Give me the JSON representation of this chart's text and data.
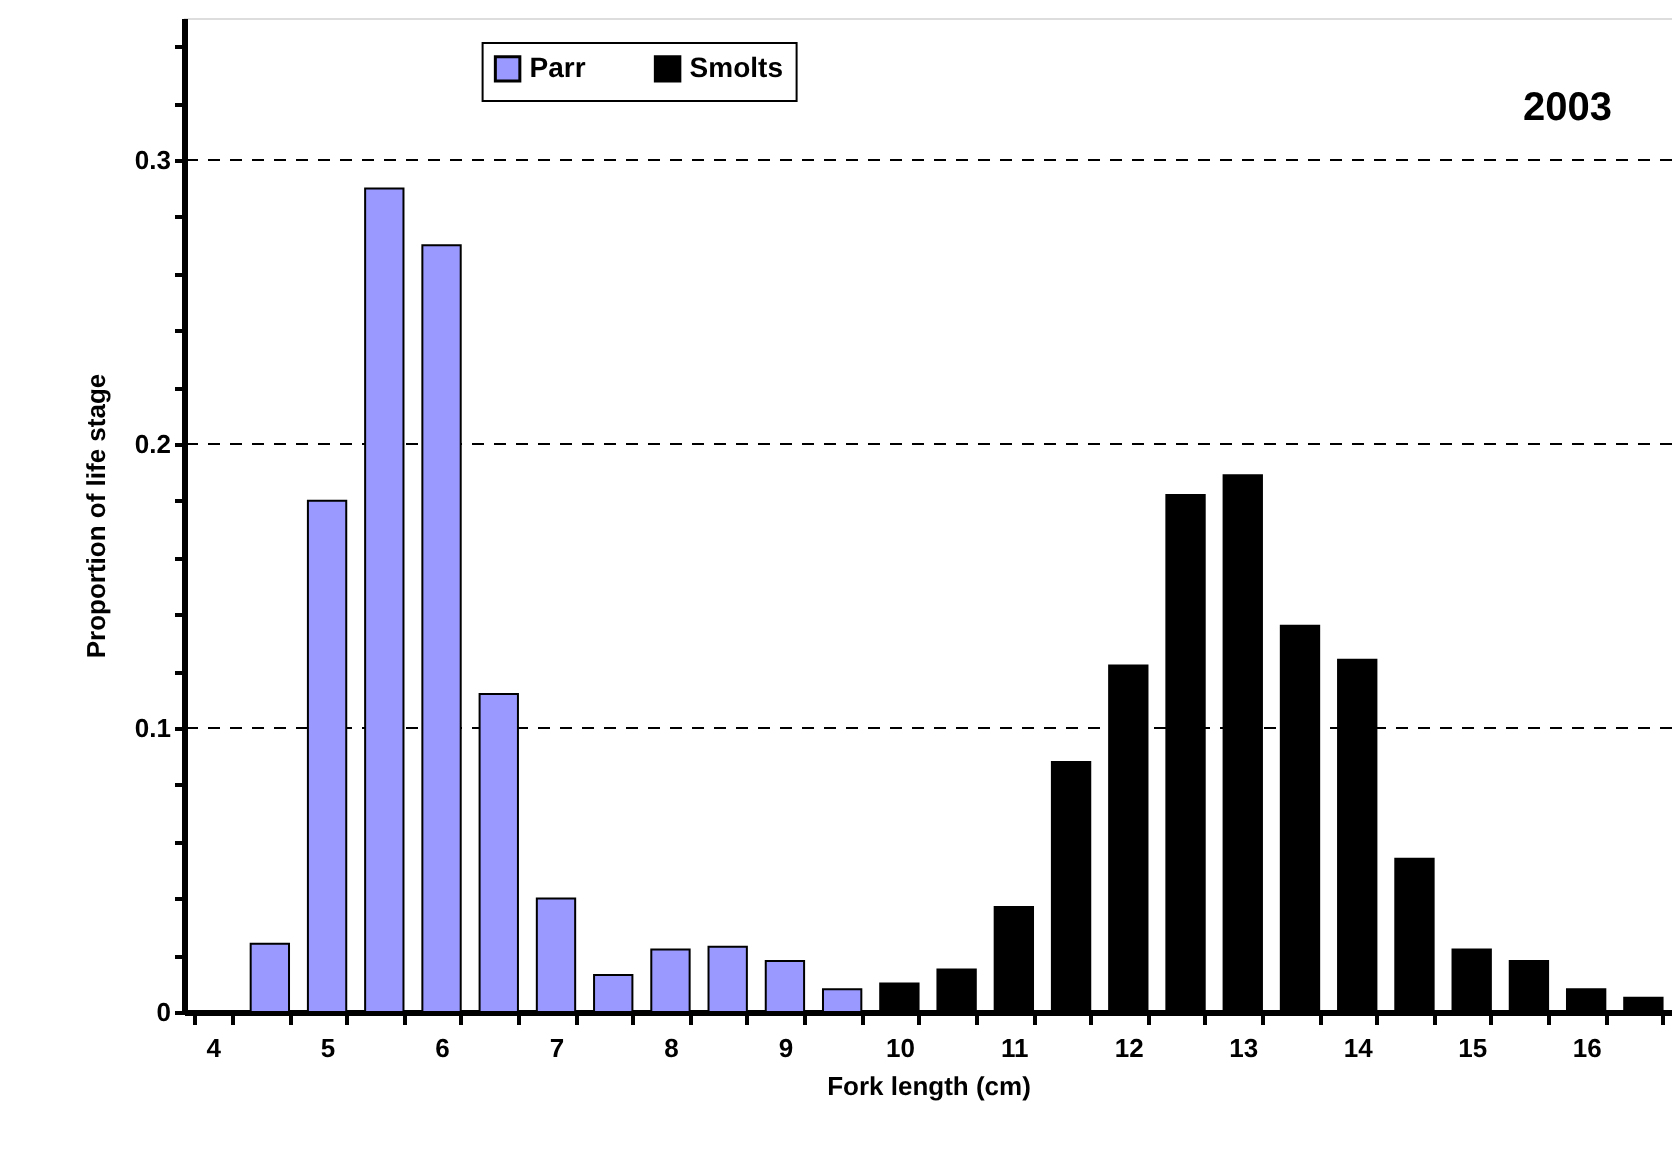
{
  "chart_data": {
    "type": "bar",
    "title": "2003",
    "xlabel": "Fork length (cm)",
    "ylabel": "Proportion of life stage",
    "categories": [
      "4",
      null,
      "5",
      null,
      "6",
      null,
      "7",
      null,
      "8",
      null,
      "9",
      null,
      "10",
      null,
      "11",
      null,
      "12",
      null,
      "13",
      null,
      "14",
      null,
      "15",
      null,
      "16",
      null
    ],
    "series": [
      {
        "name": "Parr",
        "color": "#9999ff",
        "values": [
          null,
          0.024,
          0.18,
          0.29,
          0.27,
          0.112,
          0.04,
          0.013,
          0.022,
          0.023,
          0.018,
          0.008,
          null,
          null,
          null,
          null,
          null,
          null,
          null,
          null,
          null,
          null,
          null,
          null,
          null,
          null
        ]
      },
      {
        "name": "Smolts",
        "color": "#000000",
        "values": [
          null,
          null,
          null,
          null,
          null,
          null,
          null,
          null,
          null,
          null,
          null,
          null,
          0.01,
          0.015,
          0.037,
          0.088,
          0.122,
          0.182,
          0.189,
          0.136,
          0.124,
          0.054,
          0.022,
          0.018,
          0.008,
          0.005
        ]
      }
    ],
    "ylim": [
      0,
      0.35
    ],
    "yticks": [
      0,
      {
        "value": 0.02,
        "label": null
      },
      {
        "value": 0.04,
        "label": null
      },
      {
        "value": 0.06,
        "label": null
      },
      {
        "value": 0.08,
        "label": null
      },
      0.1,
      {
        "value": 0.12,
        "label": null
      },
      {
        "value": 0.14,
        "label": null
      },
      {
        "value": 0.16,
        "label": null
      },
      {
        "value": 0.18,
        "label": null
      },
      0.2,
      {
        "value": 0.22,
        "label": null
      },
      {
        "value": 0.24,
        "label": null
      },
      {
        "value": 0.26,
        "label": null
      },
      {
        "value": 0.28,
        "label": null
      },
      0.3,
      {
        "value": 0.32,
        "label": null
      },
      {
        "value": 0.34,
        "label": null
      }
    ],
    "grid": "y",
    "legend": "top"
  }
}
